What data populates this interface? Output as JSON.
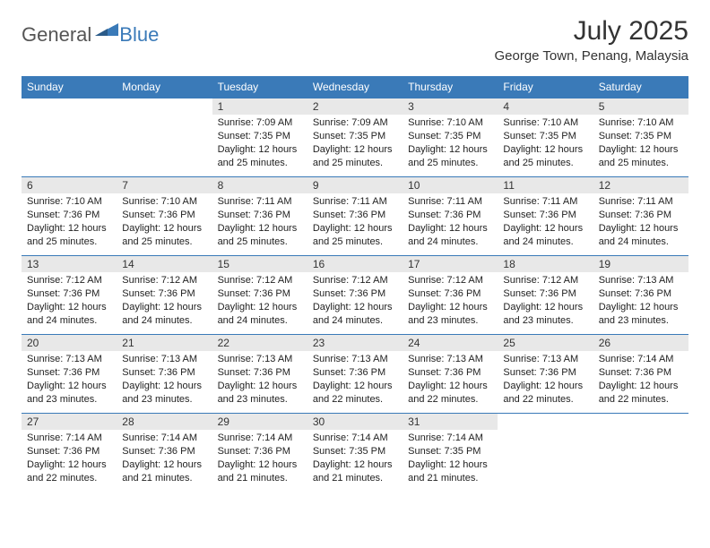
{
  "brand": {
    "general": "General",
    "blue": "Blue"
  },
  "title": "July 2025",
  "location": "George Town, Penang, Malaysia",
  "colors": {
    "header_bg": "#3a7ab8",
    "header_fg": "#ffffff",
    "day_number_bg": "#e8e8e8",
    "border": "#3a7ab8"
  },
  "days_of_week": [
    "Sunday",
    "Monday",
    "Tuesday",
    "Wednesday",
    "Thursday",
    "Friday",
    "Saturday"
  ],
  "weeks": [
    [
      null,
      null,
      {
        "n": "1",
        "sunrise": "7:09 AM",
        "sunset": "7:35 PM",
        "daylight": "12 hours and 25 minutes."
      },
      {
        "n": "2",
        "sunrise": "7:09 AM",
        "sunset": "7:35 PM",
        "daylight": "12 hours and 25 minutes."
      },
      {
        "n": "3",
        "sunrise": "7:10 AM",
        "sunset": "7:35 PM",
        "daylight": "12 hours and 25 minutes."
      },
      {
        "n": "4",
        "sunrise": "7:10 AM",
        "sunset": "7:35 PM",
        "daylight": "12 hours and 25 minutes."
      },
      {
        "n": "5",
        "sunrise": "7:10 AM",
        "sunset": "7:35 PM",
        "daylight": "12 hours and 25 minutes."
      }
    ],
    [
      {
        "n": "6",
        "sunrise": "7:10 AM",
        "sunset": "7:36 PM",
        "daylight": "12 hours and 25 minutes."
      },
      {
        "n": "7",
        "sunrise": "7:10 AM",
        "sunset": "7:36 PM",
        "daylight": "12 hours and 25 minutes."
      },
      {
        "n": "8",
        "sunrise": "7:11 AM",
        "sunset": "7:36 PM",
        "daylight": "12 hours and 25 minutes."
      },
      {
        "n": "9",
        "sunrise": "7:11 AM",
        "sunset": "7:36 PM",
        "daylight": "12 hours and 25 minutes."
      },
      {
        "n": "10",
        "sunrise": "7:11 AM",
        "sunset": "7:36 PM",
        "daylight": "12 hours and 24 minutes."
      },
      {
        "n": "11",
        "sunrise": "7:11 AM",
        "sunset": "7:36 PM",
        "daylight": "12 hours and 24 minutes."
      },
      {
        "n": "12",
        "sunrise": "7:11 AM",
        "sunset": "7:36 PM",
        "daylight": "12 hours and 24 minutes."
      }
    ],
    [
      {
        "n": "13",
        "sunrise": "7:12 AM",
        "sunset": "7:36 PM",
        "daylight": "12 hours and 24 minutes."
      },
      {
        "n": "14",
        "sunrise": "7:12 AM",
        "sunset": "7:36 PM",
        "daylight": "12 hours and 24 minutes."
      },
      {
        "n": "15",
        "sunrise": "7:12 AM",
        "sunset": "7:36 PM",
        "daylight": "12 hours and 24 minutes."
      },
      {
        "n": "16",
        "sunrise": "7:12 AM",
        "sunset": "7:36 PM",
        "daylight": "12 hours and 24 minutes."
      },
      {
        "n": "17",
        "sunrise": "7:12 AM",
        "sunset": "7:36 PM",
        "daylight": "12 hours and 23 minutes."
      },
      {
        "n": "18",
        "sunrise": "7:12 AM",
        "sunset": "7:36 PM",
        "daylight": "12 hours and 23 minutes."
      },
      {
        "n": "19",
        "sunrise": "7:13 AM",
        "sunset": "7:36 PM",
        "daylight": "12 hours and 23 minutes."
      }
    ],
    [
      {
        "n": "20",
        "sunrise": "7:13 AM",
        "sunset": "7:36 PM",
        "daylight": "12 hours and 23 minutes."
      },
      {
        "n": "21",
        "sunrise": "7:13 AM",
        "sunset": "7:36 PM",
        "daylight": "12 hours and 23 minutes."
      },
      {
        "n": "22",
        "sunrise": "7:13 AM",
        "sunset": "7:36 PM",
        "daylight": "12 hours and 23 minutes."
      },
      {
        "n": "23",
        "sunrise": "7:13 AM",
        "sunset": "7:36 PM",
        "daylight": "12 hours and 22 minutes."
      },
      {
        "n": "24",
        "sunrise": "7:13 AM",
        "sunset": "7:36 PM",
        "daylight": "12 hours and 22 minutes."
      },
      {
        "n": "25",
        "sunrise": "7:13 AM",
        "sunset": "7:36 PM",
        "daylight": "12 hours and 22 minutes."
      },
      {
        "n": "26",
        "sunrise": "7:14 AM",
        "sunset": "7:36 PM",
        "daylight": "12 hours and 22 minutes."
      }
    ],
    [
      {
        "n": "27",
        "sunrise": "7:14 AM",
        "sunset": "7:36 PM",
        "daylight": "12 hours and 22 minutes."
      },
      {
        "n": "28",
        "sunrise": "7:14 AM",
        "sunset": "7:36 PM",
        "daylight": "12 hours and 21 minutes."
      },
      {
        "n": "29",
        "sunrise": "7:14 AM",
        "sunset": "7:36 PM",
        "daylight": "12 hours and 21 minutes."
      },
      {
        "n": "30",
        "sunrise": "7:14 AM",
        "sunset": "7:35 PM",
        "daylight": "12 hours and 21 minutes."
      },
      {
        "n": "31",
        "sunrise": "7:14 AM",
        "sunset": "7:35 PM",
        "daylight": "12 hours and 21 minutes."
      },
      null,
      null
    ]
  ],
  "labels": {
    "sunrise": "Sunrise: ",
    "sunset": "Sunset: ",
    "daylight": "Daylight: "
  }
}
